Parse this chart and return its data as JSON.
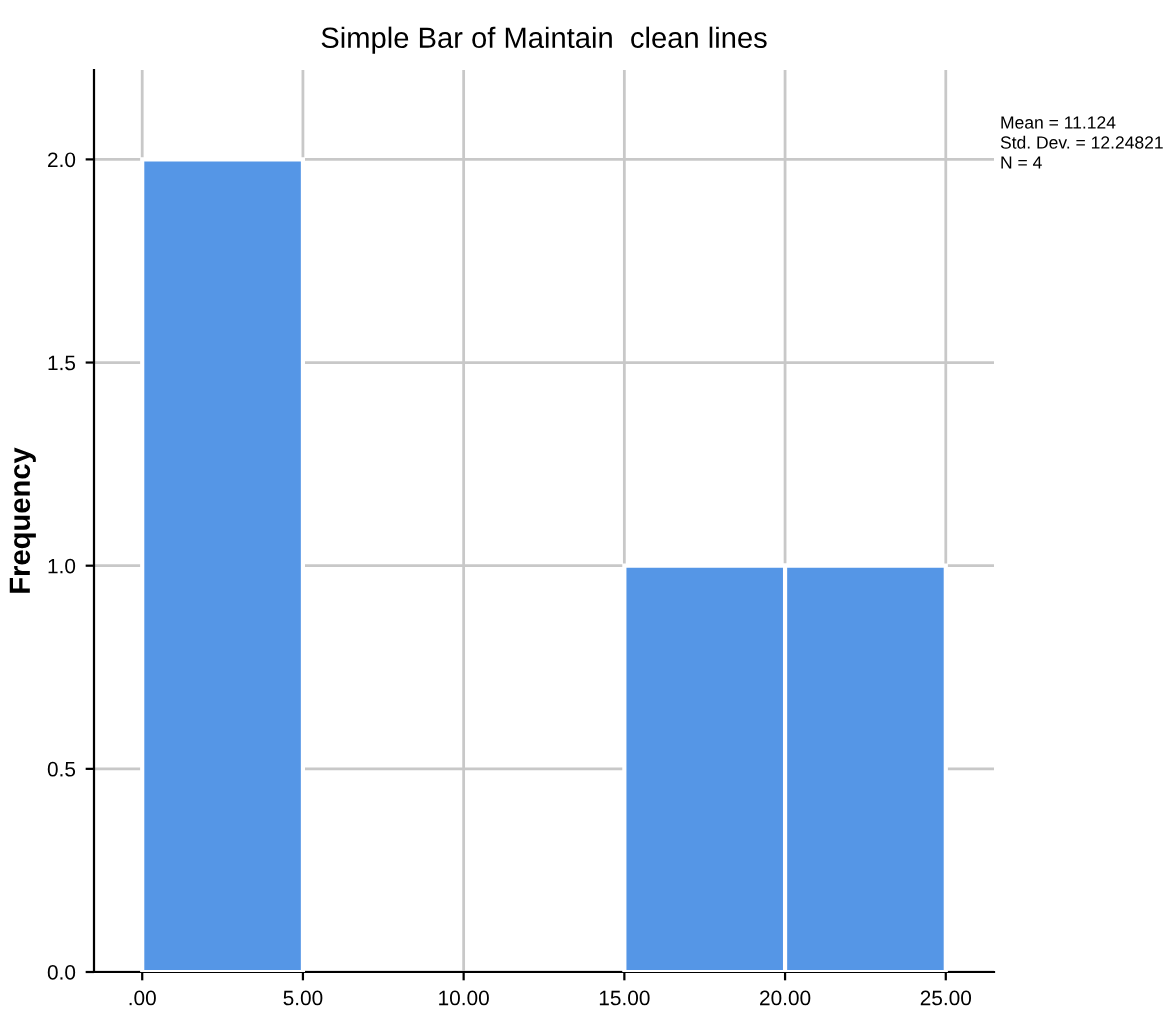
{
  "chart_data": {
    "type": "histogram",
    "title": "Simple Bar of Maintain  clean lines",
    "ylabel": "Frequency",
    "bins": [
      0,
      5,
      10,
      15,
      20,
      25
    ],
    "values": [
      2,
      0,
      0,
      1,
      1
    ],
    "color": "#5596e6",
    "xlim": [
      -1.5,
      26.5
    ],
    "ylim": [
      0,
      2.22
    ],
    "xticks": [
      {
        "value": 0,
        "label": ".00"
      },
      {
        "value": 5,
        "label": "5.00"
      },
      {
        "value": 10,
        "label": "10.00"
      },
      {
        "value": 15,
        "label": "15.00"
      },
      {
        "value": 20,
        "label": "20.00"
      },
      {
        "value": 25,
        "label": "25.00"
      }
    ],
    "yticks": [
      {
        "value": 0,
        "label": "0.0"
      },
      {
        "value": 0.5,
        "label": "0.5"
      },
      {
        "value": 1,
        "label": "1.0"
      },
      {
        "value": 1.5,
        "label": "1.5"
      },
      {
        "value": 2,
        "label": "2.0"
      }
    ],
    "grid": true,
    "annotations": [
      "Mean = 11.124",
      "Std. Dev. = 12.24821",
      "N = 4"
    ]
  }
}
